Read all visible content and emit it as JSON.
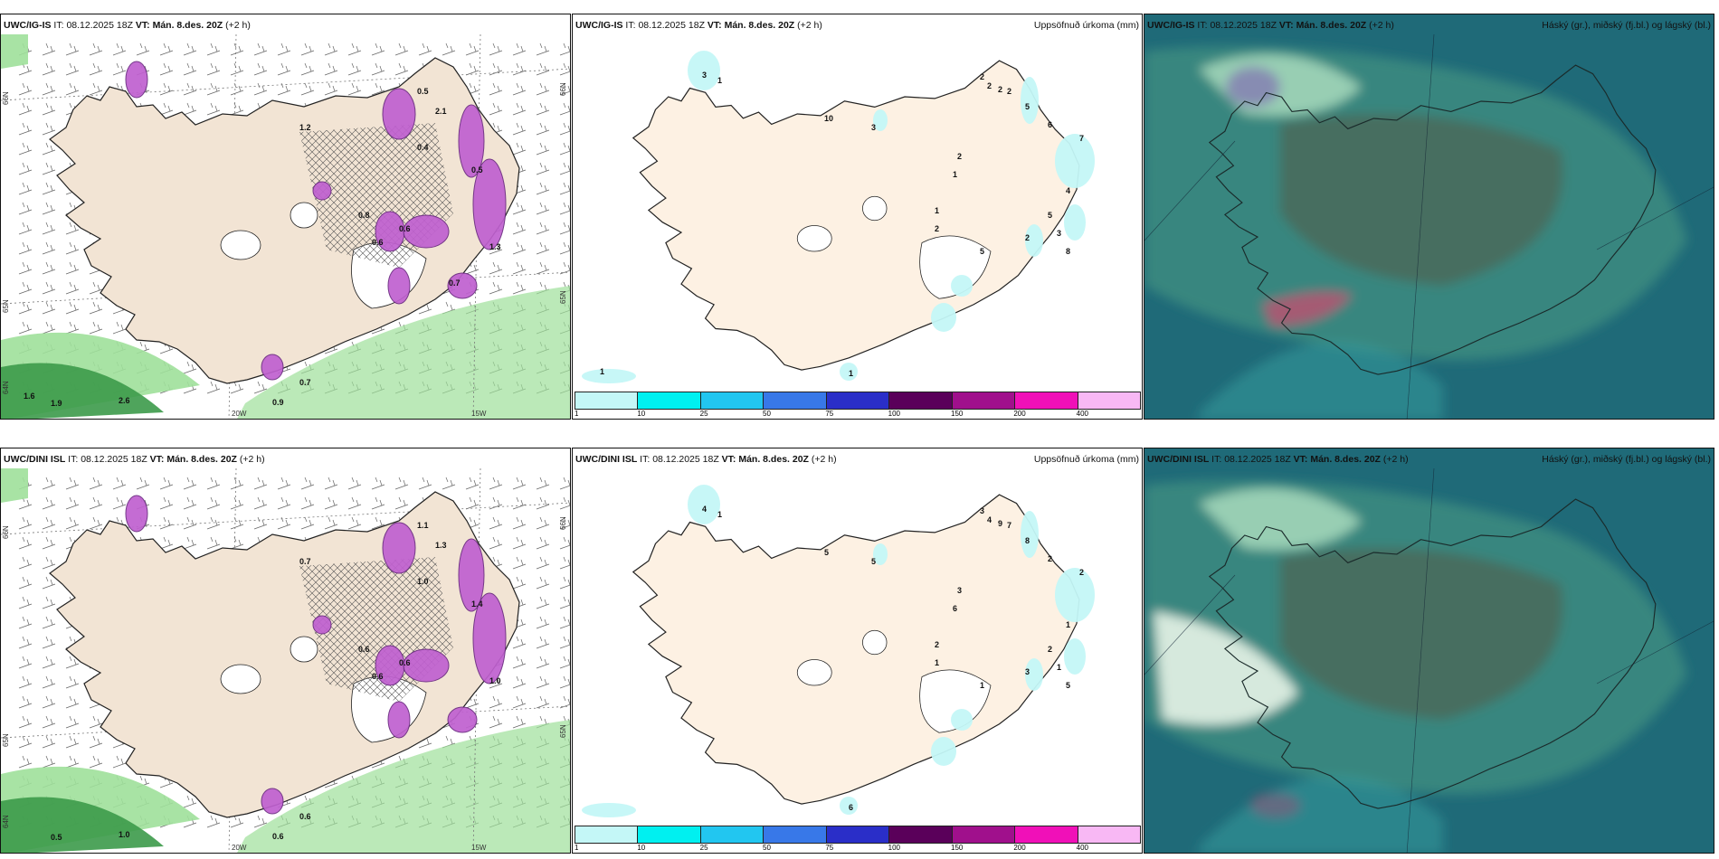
{
  "rows": [
    {
      "wind": {
        "model": "UWC/IG-IS",
        "it_label": "IT:",
        "it_value": "08.12.2025 18Z",
        "vt_label": "VT:",
        "vt_value": "Mán. 8.des. 20Z",
        "offset": "(+2 h)",
        "lat_labels": [
          "66N",
          "65N",
          "64N"
        ],
        "lon_labels": [
          "20W",
          "15W"
        ],
        "values": [
          "0.5",
          "2.1",
          "1.2",
          "0.4",
          "0.5",
          "0.6",
          "1.3",
          "0.8",
          "0.6",
          "0.7",
          "0.9",
          "2.6",
          "1.9",
          "1.6",
          "0.7"
        ]
      },
      "precip": {
        "model": "UWC/IG-IS",
        "it_label": "IT:",
        "it_value": "08.12.2025 18Z",
        "vt_label": "VT:",
        "vt_value": "Mán. 8.des. 20Z",
        "offset": "(+2 h)",
        "right_title": "Uppsöfnuð úrkoma (mm)",
        "values": [
          "2",
          "2",
          "2",
          "2",
          "5",
          "1",
          "3",
          "6",
          "7",
          "2",
          "1",
          "4",
          "2",
          "5",
          "3",
          "8",
          "2",
          "5",
          "1",
          "3",
          "10",
          "1",
          "1"
        ]
      },
      "cloud": {
        "model": "UWC/IG-IS",
        "it_label": "IT:",
        "it_value": "08.12.2025 18Z",
        "vt_label": "VT:",
        "vt_value": "Mán. 8.des. 20Z",
        "offset": "(+2 h)",
        "right_title": "Háský (gr.), miðský (fj.bl.) og lágský (bl.)"
      }
    },
    {
      "wind": {
        "model": "UWC/DINI ISL",
        "it_label": "IT:",
        "it_value": "08.12.2025 18Z",
        "vt_label": "VT:",
        "vt_value": "Mán. 8.des. 20Z",
        "offset": "(+2 h)",
        "lat_labels": [
          "66N",
          "65N",
          "64N"
        ],
        "lon_labels": [
          "20W",
          "15W"
        ],
        "values": [
          "1.1",
          "1.3",
          "0.7",
          "1.0",
          "1.4",
          "0.6",
          "1.0",
          "0.6",
          "0.6",
          "0.6",
          "0.6",
          "1.0",
          "0.5"
        ]
      },
      "precip": {
        "model": "UWC/DINI ISL",
        "it_label": "IT:",
        "it_value": "08.12.2025 18Z",
        "vt_label": "VT:",
        "vt_value": "Mán. 8.des. 20Z",
        "offset": "(+2 h)",
        "right_title": "Uppsöfnuð úrkoma (mm)",
        "values": [
          "3",
          "4",
          "9",
          "7",
          "8",
          "6",
          "5",
          "2",
          "2",
          "3",
          "2",
          "1",
          "1",
          "2",
          "1",
          "5",
          "3",
          "1",
          "1",
          "4",
          "5",
          "6"
        ]
      },
      "cloud": {
        "model": "UWC/DINI ISL",
        "it_label": "IT:",
        "it_value": "08.12.2025 18Z",
        "vt_label": "VT:",
        "vt_value": "Mán. 8.des. 20Z",
        "offset": "(+2 h)",
        "right_title": "Háský (gr.), miðský (fj.bl.) og lágský (bl.)"
      }
    }
  ],
  "precip_legend": {
    "colors": [
      "#c4f7f7",
      "#00f0f0",
      "#22c6f0",
      "#3878e8",
      "#2a2ec8",
      "#5a005a",
      "#a0108c",
      "#f010b8",
      "#f8b8f4"
    ],
    "ticks": [
      "1",
      "10",
      "25",
      "50",
      "75",
      "100",
      "150",
      "200",
      "400"
    ]
  },
  "colors": {
    "land": "#f2e4d4",
    "precip_land": "#fdf1e3",
    "snow_purple": "#c060d0",
    "wind_green": "#9ee09a",
    "cloud_teal": "#3a8a80"
  }
}
